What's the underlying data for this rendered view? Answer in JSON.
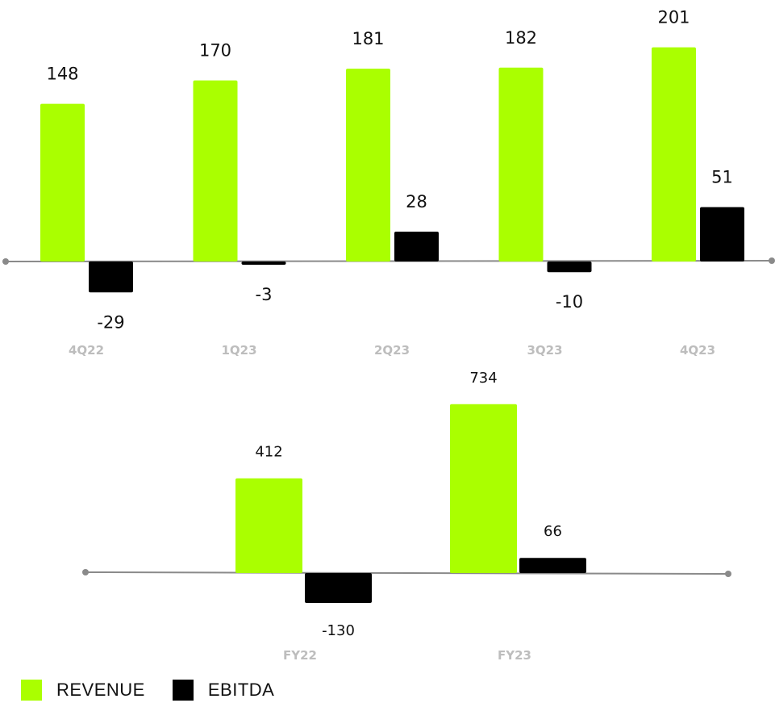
{
  "colors": {
    "revenue": "#aaff00",
    "ebitda": "#000000",
    "axis": "#8a8a8a",
    "category": "#bdbdbd"
  },
  "legend": [
    {
      "name": "REVENUE",
      "color": "#aaff00"
    },
    {
      "name": "EBITDA",
      "color": "#000000"
    }
  ],
  "chart_data": [
    {
      "type": "bar",
      "title": "",
      "categories": [
        "4Q22",
        "1Q23",
        "2Q23",
        "3Q23",
        "4Q23"
      ],
      "series": [
        {
          "name": "REVENUE",
          "values": [
            148,
            170,
            181,
            182,
            201
          ],
          "labels": [
            "148",
            "170",
            "181",
            "182",
            "201"
          ]
        },
        {
          "name": "EBITDA",
          "values": [
            -29,
            -3,
            28,
            -10,
            51
          ],
          "labels": [
            "-29",
            "-3",
            "28",
            "-10",
            "51"
          ]
        }
      ]
    },
    {
      "type": "bar",
      "title": "",
      "categories": [
        "FY22",
        "FY23"
      ],
      "series": [
        {
          "name": "REVENUE",
          "values": [
            412,
            734
          ],
          "labels": [
            "412",
            "734"
          ]
        },
        {
          "name": "EBITDA",
          "values": [
            -130,
            66
          ],
          "labels": [
            "-130",
            "66"
          ]
        }
      ]
    }
  ]
}
